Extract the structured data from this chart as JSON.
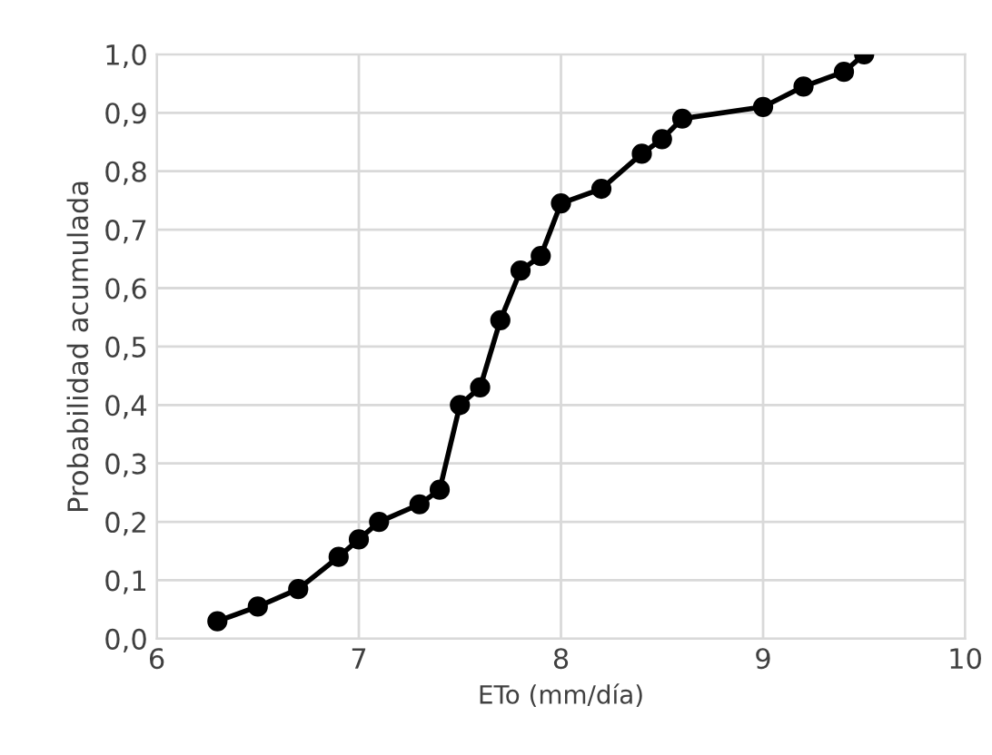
{
  "chart_data": {
    "type": "line",
    "xlabel": "ETo (mm/día)",
    "ylabel": "Probabilidad acumulada",
    "series": [
      {
        "color": "#000000",
        "x": [
          6.3,
          6.5,
          6.7,
          6.9,
          7.0,
          7.1,
          7.3,
          7.4,
          7.5,
          7.6,
          7.7,
          7.8,
          7.9,
          8.0,
          8.2,
          8.4,
          8.5,
          8.6,
          9.0,
          9.2,
          9.4,
          9.5
        ],
        "values": [
          0.03,
          0.055,
          0.085,
          0.14,
          0.17,
          0.2,
          0.23,
          0.255,
          0.4,
          0.43,
          0.545,
          0.63,
          0.655,
          0.745,
          0.77,
          0.83,
          0.855,
          0.89,
          0.91,
          0.945,
          0.97,
          1.0
        ]
      }
    ],
    "xlim": [
      6,
      10
    ],
    "xticks": [
      6,
      7,
      8,
      9,
      10
    ],
    "ylim": [
      0,
      1
    ],
    "yticks": [
      {
        "value": 0,
        "label": "0,0"
      },
      {
        "value": 0.1,
        "label": "0,1"
      },
      {
        "value": 0.2,
        "label": "0,2"
      },
      {
        "value": 0.3,
        "label": "0,3"
      },
      {
        "value": 0.4,
        "label": "0,4"
      },
      {
        "value": 0.5,
        "label": "0,5"
      },
      {
        "value": 0.6,
        "label": "0,6"
      },
      {
        "value": 0.7,
        "label": "0,7"
      },
      {
        "value": 0.8,
        "label": "0,8"
      },
      {
        "value": 0.9,
        "label": "0,9"
      },
      {
        "value": 1.0,
        "label": "1,0"
      }
    ],
    "grid": true,
    "marker": "circle",
    "line_style": "solid"
  }
}
